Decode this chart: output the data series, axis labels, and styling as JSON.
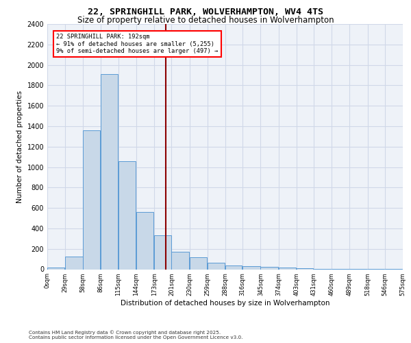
{
  "title_line1": "22, SPRINGHILL PARK, WOLVERHAMPTON, WV4 4TS",
  "title_line2": "Size of property relative to detached houses in Wolverhampton",
  "xlabel": "Distribution of detached houses by size in Wolverhampton",
  "ylabel": "Number of detached properties",
  "footnote": "Contains HM Land Registry data © Crown copyright and database right 2025.\nContains public sector information licensed under the Open Government Licence v3.0.",
  "annotation_title": "22 SPRINGHILL PARK: 192sqm",
  "annotation_line2": "← 91% of detached houses are smaller (5,255)",
  "annotation_line3": "9% of semi-detached houses are larger (497) →",
  "property_sqm": 192,
  "bins": [
    0,
    29,
    58,
    86,
    115,
    144,
    173,
    201,
    230,
    259,
    288,
    316,
    345,
    374,
    403,
    431,
    460,
    489,
    518,
    546,
    575
  ],
  "counts": [
    15,
    125,
    1360,
    1910,
    1055,
    560,
    335,
    170,
    115,
    65,
    40,
    30,
    25,
    20,
    10,
    5,
    5,
    5,
    5,
    5
  ],
  "bar_facecolor": "#c8d8e8",
  "bar_edgecolor": "#5b9bd5",
  "vline_color": "#8b0000",
  "grid_color": "#d0d8e8",
  "background_color": "#eef2f8",
  "ylim": [
    0,
    2400
  ],
  "yticks": [
    0,
    200,
    400,
    600,
    800,
    1000,
    1200,
    1400,
    1600,
    1800,
    2000,
    2200,
    2400
  ]
}
